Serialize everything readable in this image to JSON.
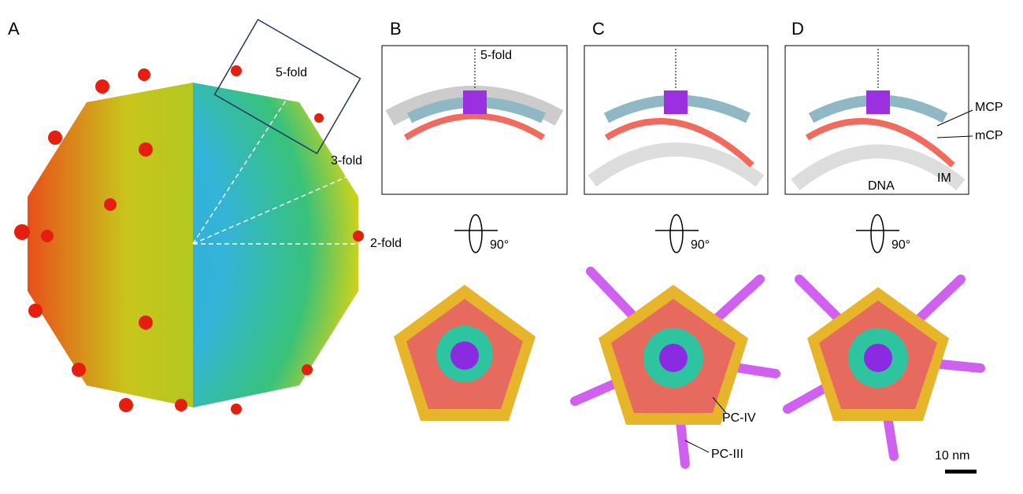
{
  "panels": [
    {
      "label": "A",
      "annotations": [
        "5-fold",
        "3-fold",
        "2-fold"
      ]
    },
    {
      "label": "B",
      "annotations": [
        "5-fold"
      ],
      "rotation": "90°"
    },
    {
      "label": "C",
      "annotations": [
        "PC-IV",
        "PC-III"
      ],
      "rotation": "90°"
    },
    {
      "label": "D",
      "annotations": [
        "MCP",
        "mCP",
        "DNA",
        "IM"
      ],
      "rotation": "90°"
    }
  ],
  "scale_bar": "10 nm"
}
